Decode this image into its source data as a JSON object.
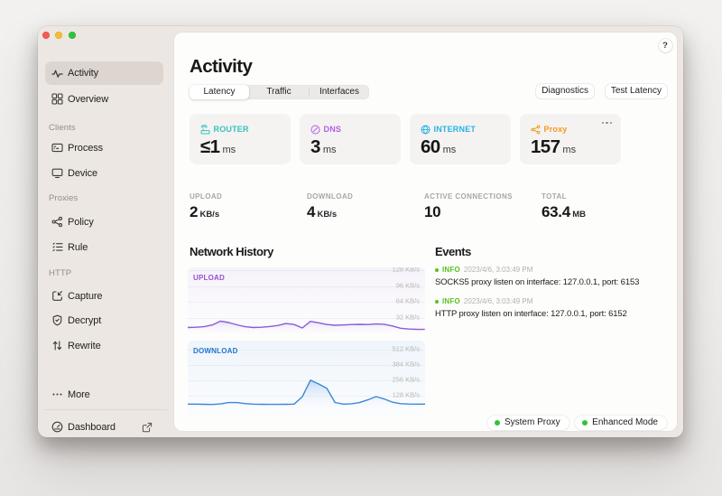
{
  "traffic_lights": {
    "close": "close",
    "minimize": "minimize",
    "zoom": "zoom"
  },
  "sidebar": {
    "activity": "Activity",
    "overview": "Overview",
    "clients_header": "Clients",
    "process": "Process",
    "device": "Device",
    "proxies_header": "Proxies",
    "policy": "Policy",
    "rule": "Rule",
    "http_header": "HTTP",
    "capture": "Capture",
    "decrypt": "Decrypt",
    "rewrite": "Rewrite",
    "more": "More",
    "dashboard": "Dashboard"
  },
  "header": {
    "title": "Activity",
    "help_label": "?",
    "tabs": {
      "latency": "Latency",
      "traffic": "Traffic",
      "interfaces": "Interfaces"
    },
    "selected_tab": "Latency",
    "diagnostics_label": "Diagnostics",
    "test_latency_label": "Test Latency"
  },
  "latency_cards": [
    {
      "label": "ROUTER",
      "value": "≤1",
      "unit": "ms",
      "color": "#35c1ba",
      "icon": "router-icon"
    },
    {
      "label": "DNS",
      "value": "3",
      "unit": "ms",
      "color": "#b45ce6",
      "icon": "dns-icon"
    },
    {
      "label": "INTERNET",
      "value": "60",
      "unit": "ms",
      "color": "#27b3e0",
      "icon": "globe-icon"
    },
    {
      "label": "Proxy",
      "value": "157",
      "unit": "ms",
      "color": "#f59a1d",
      "icon": "share-nodes-icon"
    }
  ],
  "stats": [
    {
      "label": "UPLOAD",
      "value": "2",
      "unit": "KB/s"
    },
    {
      "label": "DOWNLOAD",
      "value": "4",
      "unit": "KB/s"
    },
    {
      "label": "ACTIVE CONNECTIONS",
      "value": "10",
      "unit": ""
    },
    {
      "label": "TOTAL",
      "value": "63.4",
      "unit": "MB"
    }
  ],
  "network_history_heading": "Network History",
  "events": {
    "heading": "Events",
    "items": [
      {
        "level": "INFO",
        "time": "2023/4/6, 3:03:49 PM",
        "message": "SOCKS5 proxy listen on interface: 127.0.0.1, port: 6153"
      },
      {
        "level": "INFO",
        "time": "2023/4/6, 3:03:49 PM",
        "message": "HTTP proxy listen on interface: 127.0.0.1, port: 6152"
      }
    ]
  },
  "footer_badges": [
    {
      "label": "System Proxy",
      "status_color": "#2fc33c"
    },
    {
      "label": "Enhanced Mode",
      "status_color": "#2fc33c"
    }
  ],
  "chart_data": [
    {
      "type": "area",
      "title": "UPLOAD",
      "ylabel": "KB/s",
      "ylim": [
        0,
        134
      ],
      "line_color": "#8a5cd6",
      "label_color": "#9a4fd0",
      "fill_from": "rgba(138,92,214,0.18)",
      "grid": true,
      "gridlines": [
        {
          "value": 128,
          "label": "128 KB/s"
        },
        {
          "value": 96,
          "label": "96 KB/s"
        },
        {
          "value": 64,
          "label": "64 KB/s"
        },
        {
          "value": 32,
          "label": "32 KB/s"
        }
      ],
      "values": [
        12,
        12.5,
        13.5,
        17,
        25,
        22,
        17.5,
        13.5,
        12,
        12.5,
        14,
        16,
        20,
        18,
        11,
        24.5,
        21.5,
        18,
        16.5,
        17,
        18,
        18.3,
        18,
        19,
        18.6,
        15,
        10.5,
        8.8,
        8.2,
        8
      ]
    },
    {
      "type": "area",
      "title": "DOWNLOAD",
      "ylabel": "KB/s",
      "ylim": [
        0,
        590
      ],
      "line_color": "#3e87d7",
      "label_color": "#2277cc",
      "fill_from": "rgba(62,135,215,0.28)",
      "grid": true,
      "gridlines": [
        {
          "value": 512,
          "label": "512 KB/s"
        },
        {
          "value": 384,
          "label": "384 KB/s"
        },
        {
          "value": 256,
          "label": "256 KB/s"
        },
        {
          "value": 128,
          "label": "128 KB/s"
        }
      ],
      "values": [
        58,
        58,
        57,
        55.5,
        60,
        71,
        71,
        63,
        58,
        56.5,
        56,
        56,
        57,
        58,
        120,
        259,
        227,
        190,
        72,
        58,
        61,
        71,
        94,
        121,
        101.5,
        75,
        62,
        59,
        58,
        58
      ]
    }
  ]
}
